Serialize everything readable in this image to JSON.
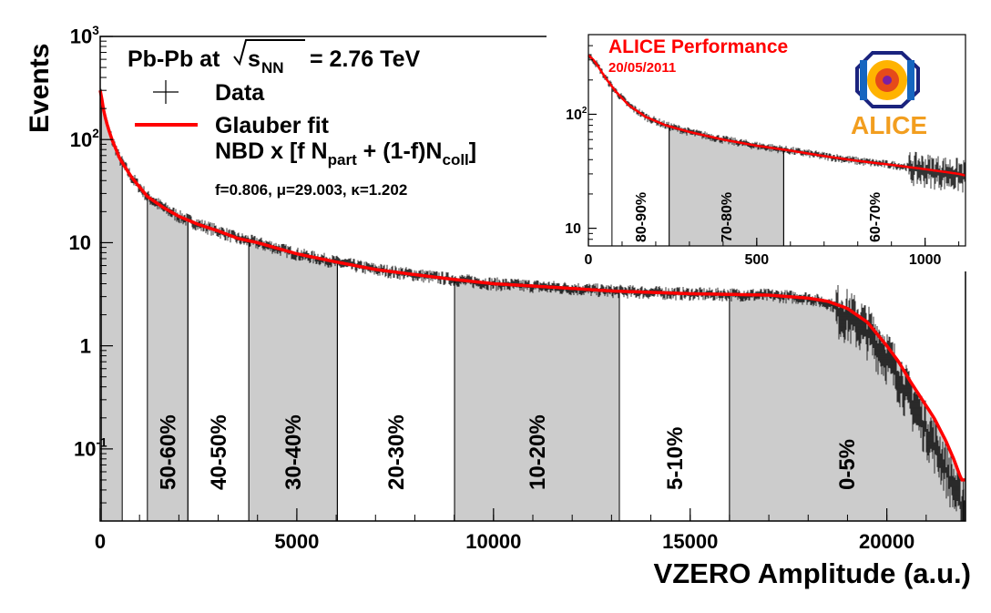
{
  "chart_data": [
    {
      "type": "line",
      "title": "",
      "xlabel": "VZERO Amplitude (a.u.)",
      "ylabel": "Events",
      "xlim": [
        0,
        22000
      ],
      "ylim": [
        0.02,
        1000
      ],
      "yscale": "log",
      "x_ticks": [
        0,
        5000,
        10000,
        15000,
        20000
      ],
      "y_ticks": [
        {
          "value": 0.1,
          "label": "10",
          "exp": "-1"
        },
        {
          "value": 1,
          "label": "1",
          "exp": ""
        },
        {
          "value": 10,
          "label": "10",
          "exp": ""
        },
        {
          "value": 100,
          "label": "10",
          "exp": "2"
        },
        {
          "value": 1000,
          "label": "10",
          "exp": "3"
        }
      ],
      "legend": {
        "placement": "top-left",
        "header_main": "Pb-Pb at",
        "header_s": "s",
        "header_sub": "NN",
        "header_energy": "= 2.76 TeV",
        "data_label": "Data",
        "fit_label": "Glauber fit",
        "fit_formula_a": "NBD x [f N",
        "fit_formula_b": "part",
        "fit_formula_c": " + (1-f)N",
        "fit_formula_d": "coll",
        "fit_formula_e": "]",
        "params": "f=0.806, μ=29.003, κ=1.202"
      },
      "colors": {
        "fit": "#ff0000",
        "data": "#000000",
        "band": "#cccccc"
      },
      "series": [
        {
          "name": "Data",
          "x": [
            0,
            40,
            100,
            200,
            300,
            500,
            800,
            1200,
            1600,
            2000,
            2500,
            3000,
            3500,
            4000,
            5000,
            6000,
            7000,
            8000,
            9000,
            10000,
            11000,
            12000,
            13000,
            14000,
            15000,
            16000,
            17000,
            17500,
            18000,
            18500,
            19000,
            19500,
            20000,
            20300,
            20600,
            20900,
            21200,
            21500,
            21700,
            21900
          ],
          "y": [
            300,
            250,
            180,
            130,
            100,
            65,
            43,
            28,
            22,
            18,
            15,
            13,
            11,
            10,
            7.8,
            6.5,
            5.5,
            4.9,
            4.4,
            4.0,
            3.8,
            3.6,
            3.4,
            3.3,
            3.2,
            3.15,
            3.1,
            3.0,
            2.9,
            2.6,
            2.1,
            1.5,
            0.85,
            0.55,
            0.32,
            0.2,
            0.12,
            0.07,
            0.045,
            0.03
          ]
        },
        {
          "name": "Glauber fit",
          "x": [
            0,
            40,
            100,
            200,
            300,
            500,
            800,
            1200,
            1600,
            2000,
            2500,
            3000,
            3500,
            4000,
            5000,
            6000,
            7000,
            8000,
            9000,
            10000,
            11000,
            12000,
            13000,
            14000,
            15000,
            16000,
            17000,
            17500,
            18000,
            18500,
            19000,
            19500,
            20000,
            20300,
            20600,
            20900,
            21200,
            21500,
            21700,
            21900
          ],
          "y": [
            300,
            250,
            180,
            130,
            100,
            65,
            43,
            28,
            22,
            18,
            15,
            13,
            11,
            10,
            7.8,
            6.5,
            5.5,
            4.9,
            4.4,
            4.0,
            3.8,
            3.6,
            3.4,
            3.3,
            3.2,
            3.15,
            3.1,
            3.0,
            2.9,
            2.7,
            2.3,
            1.7,
            1.0,
            0.7,
            0.45,
            0.3,
            0.2,
            0.12,
            0.08,
            0.05
          ]
        }
      ],
      "centrality_bins": [
        {
          "label": "",
          "x0": 30,
          "x1": 560,
          "shaded": true
        },
        {
          "label": "50-60%",
          "x0": 1200,
          "x1": 2230,
          "shaded": true
        },
        {
          "label": "40-50%",
          "x0": 2230,
          "x1": 3780,
          "shaded": false
        },
        {
          "label": "30-40%",
          "x0": 3780,
          "x1": 6030,
          "shaded": true
        },
        {
          "label": "20-30%",
          "x0": 6030,
          "x1": 9010,
          "shaded": false
        },
        {
          "label": "10-20%",
          "x0": 9010,
          "x1": 13200,
          "shaded": true
        },
        {
          "label": "5-10%",
          "x0": 13200,
          "x1": 16000,
          "shaded": false
        },
        {
          "label": "0-5%",
          "x0": 16000,
          "x1": 21950,
          "shaded": true
        }
      ]
    },
    {
      "type": "line",
      "title": "ALICE Performance",
      "subtitle": "20/05/2011",
      "xlim": [
        0,
        1120
      ],
      "ylim": [
        7,
        500
      ],
      "yscale": "log",
      "x_ticks": [
        0,
        500,
        1000
      ],
      "y_ticks": [
        {
          "value": 10,
          "label": "10",
          "exp": ""
        },
        {
          "value": 100,
          "label": "10",
          "exp": "2"
        }
      ],
      "logo_text": "ALICE",
      "series": [
        {
          "name": "Data",
          "x": [
            0,
            15,
            30,
            50,
            80,
            120,
            170,
            230,
            300,
            400,
            500,
            600,
            700,
            800,
            900,
            1000,
            1100,
            1120
          ],
          "y": [
            330,
            300,
            260,
            210,
            160,
            120,
            95,
            80,
            70,
            60,
            53,
            48,
            43,
            39,
            36,
            33,
            30,
            29
          ]
        },
        {
          "name": "Glauber fit",
          "x": [
            0,
            15,
            30,
            50,
            80,
            120,
            170,
            230,
            300,
            400,
            500,
            600,
            700,
            800,
            900,
            1000,
            1100,
            1120
          ],
          "y": [
            330,
            300,
            260,
            210,
            160,
            120,
            95,
            80,
            70,
            60,
            53,
            48,
            43,
            39,
            36,
            33,
            30,
            29
          ]
        }
      ],
      "centrality_bins": [
        {
          "label": "80-90%",
          "x0": 70,
          "x1": 240,
          "shaded": false
        },
        {
          "label": "70-80%",
          "x0": 240,
          "x1": 580,
          "shaded": true
        },
        {
          "label": "60-70%",
          "x0": 580,
          "x1": 1120,
          "shaded": false
        }
      ]
    }
  ]
}
